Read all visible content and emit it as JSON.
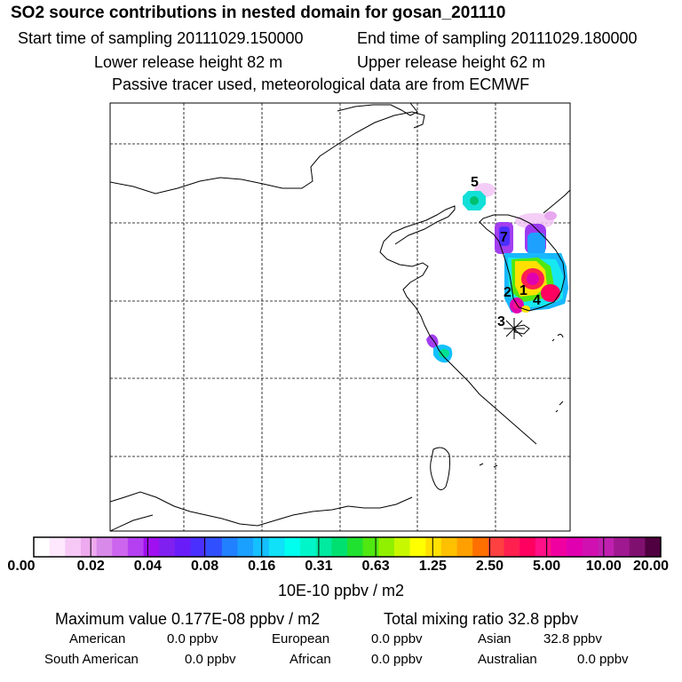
{
  "header": {
    "title": "SO2 source contributions in nested domain for gosan_201110",
    "start_label": "Start time of sampling 20111029.150000",
    "end_label": "End time of sampling 20111029.180000",
    "lower_label": "Lower release height   82 m",
    "upper_label": "Upper release height   62 m",
    "tracer_note": "Passive tracer used, meteorological data are from ECMWF"
  },
  "map": {
    "source_labels": [
      "1",
      "2",
      "3",
      "4",
      "5",
      "7"
    ],
    "colors": {
      "coast": "#000000",
      "grid": "#000000"
    }
  },
  "colorbar": {
    "colors": [
      "#ffffff",
      "#fde8fd",
      "#f6c8f6",
      "#eeaaee",
      "#d88ae8",
      "#cc66ee",
      "#b440f2",
      "#a010f0",
      "#8020f0",
      "#6a1cf8",
      "#4a30ff",
      "#3050ff",
      "#2080ff",
      "#1aa0ff",
      "#14c0ff",
      "#10e0f8",
      "#00ffee",
      "#00f5c8",
      "#00eaa0",
      "#00e070",
      "#20e030",
      "#50e810",
      "#90f000",
      "#c8f800",
      "#ffff00",
      "#ffe000",
      "#ffc000",
      "#ffa000",
      "#ff7000",
      "#ff4040",
      "#ff2050",
      "#ff0060",
      "#ff1088",
      "#f000a0",
      "#e000b0",
      "#d010b0",
      "#c020b0",
      "#a01890",
      "#801070",
      "#500040"
    ],
    "tick_labels": [
      "0.00",
      "0.02",
      "0.04",
      "0.08",
      "0.16",
      "0.31",
      "0.63",
      "1.25",
      "2.50",
      "5.00",
      "10.00",
      "20.00"
    ],
    "unit": "10E-10 ppbv / m2"
  },
  "stats": {
    "max_value": "Maximum value  0.177E-08 ppbv / m2",
    "total": "Total mixing ratio      32.8 ppbv",
    "american": "American",
    "american_val": "0.0 ppbv",
    "european": "European",
    "european_val": "0.0 ppbv",
    "asian": "Asian",
    "asian_val": "32.8 ppbv",
    "south_american": "South American",
    "south_american_val": "0.0 ppbv",
    "african": "African",
    "african_val": "0.0 ppbv",
    "australian": "Australian",
    "australian_val": "0.0 ppbv"
  }
}
